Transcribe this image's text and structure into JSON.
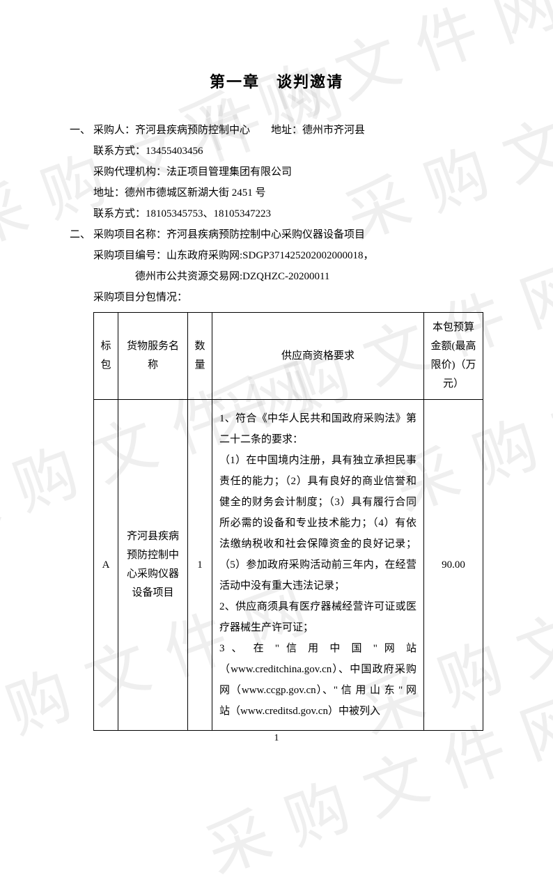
{
  "watermark_text": "采购文件网",
  "title": "第一章　谈判邀请",
  "section1": {
    "label": "一、",
    "purchaser_line": "采购人：齐河县疾病预防控制中心　　地址：德州市齐河县",
    "contact": "联系方式：13455403456",
    "agency": "采购代理机构：法正项目管理集团有限公司",
    "agency_addr": "地址：德州市德城区新湖大街 2451 号",
    "agency_contact": "联系方式：18105345753、18105347223"
  },
  "section2": {
    "label": "二、",
    "project_name": "采购项目名称：齐河县疾病预防控制中心采购仪器设备项目",
    "project_code": "采购项目编号：山东政府采购网:SDGP371425202002000018，",
    "project_code2": "德州市公共资源交易网:DZQHZC-20200011",
    "sub_label": "采购项目分包情况："
  },
  "table": {
    "headers": {
      "pack": "标包",
      "name": "货物服务名称",
      "qty": "数量",
      "req": "供应商资格要求",
      "budget": "本包预算金额(最高限价)（万元）"
    },
    "row": {
      "pack": "A",
      "name": "齐河县疾病预防控制中心采购仪器设备项目",
      "qty": "1",
      "requirements": "1、符合《中华人民共和国政府采购法》第二十二条的要求：\n（1）在中国境内注册，具有独立承担民事责任的能力；（2）具有良好的商业信誉和健全的财务会计制度；（3）具有履行合同所必需的设备和专业技术能力；（4）有依法缴纳税收和社会保障资金的良好记录；（5）参加政府采购活动前三年内，在经营活动中没有重大违法记录；\n2、供应商须具有医疗器械经营许可证或医疗器械生产许可证；\n3 、 在 \" 信 用 中 国 \" 网 站（www.creditchina.gov.cn）、中国政府采购网（www.ccgp.gov.cn）、\" 信 用 山 东 \" 网 站（www.creditsd.gov.cn）中被列入",
      "budget": "90.00"
    }
  },
  "page_number": "1"
}
